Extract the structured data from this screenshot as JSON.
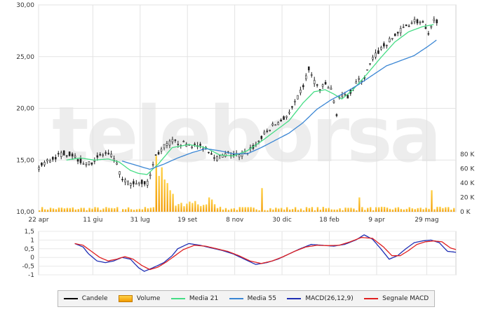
{
  "watermark": "teleborsa",
  "chart_data": [
    {
      "type": "candlestick",
      "panel": "price",
      "ylim": [
        10,
        30
      ],
      "yticks": [
        "10,00",
        "15,00",
        "20,00",
        "25,00",
        "30,00"
      ],
      "volume_axis": {
        "ylim": [
          0,
          90000
        ],
        "ticks": [
          "0 K",
          "20 K",
          "40 K",
          "60 K",
          "80 K"
        ]
      },
      "x_labels": [
        "22 apr",
        "11 giu",
        "31 lug",
        "19 set",
        "8 nov",
        "30 dic",
        "18 feb",
        "9 apr",
        "29 mag"
      ],
      "grid": true,
      "price_path_anchors": [
        [
          0,
          14.3
        ],
        [
          6,
          14.9
        ],
        [
          12,
          15.3
        ],
        [
          18,
          15.7
        ],
        [
          24,
          15.5
        ],
        [
          30,
          14.9
        ],
        [
          36,
          14.6
        ],
        [
          42,
          15.3
        ],
        [
          48,
          15.6
        ],
        [
          54,
          15.2
        ],
        [
          60,
          13.0
        ],
        [
          66,
          12.7
        ],
        [
          72,
          12.9
        ],
        [
          78,
          12.8
        ],
        [
          84,
          15.4
        ],
        [
          90,
          16.3
        ],
        [
          96,
          16.8
        ],
        [
          104,
          16.6
        ],
        [
          112,
          16.4
        ],
        [
          120,
          16.2
        ],
        [
          128,
          15.2
        ],
        [
          136,
          15.6
        ],
        [
          144,
          15.4
        ],
        [
          150,
          15.8
        ],
        [
          156,
          16.5
        ],
        [
          162,
          17.5
        ],
        [
          168,
          18.3
        ],
        [
          174,
          18.8
        ],
        [
          180,
          19.5
        ],
        [
          186,
          21.0
        ],
        [
          190,
          22.2
        ],
        [
          194,
          23.8
        ],
        [
          198,
          22.6
        ],
        [
          202,
          21.8
        ],
        [
          206,
          22.3
        ],
        [
          210,
          21.8
        ],
        [
          214,
          19.5
        ],
        [
          216,
          21.0
        ],
        [
          222,
          21.2
        ],
        [
          228,
          22.5
        ],
        [
          234,
          23.0
        ],
        [
          240,
          24.8
        ],
        [
          246,
          25.8
        ],
        [
          252,
          26.5
        ],
        [
          258,
          27.3
        ],
        [
          264,
          28.0
        ],
        [
          270,
          28.5
        ],
        [
          276,
          28.2
        ],
        [
          280,
          27.0
        ],
        [
          284,
          28.5
        ]
      ],
      "volume_spikes": {
        "84": 78000,
        "86": 50000,
        "88": 62000,
        "90": 45000,
        "92": 40000,
        "94": 30000,
        "96": 25000,
        "122": 20000,
        "160": 33000,
        "185": 15000,
        "230": 20000,
        "282": 30000
      },
      "ma21_anchors": [
        [
          20,
          15.0
        ],
        [
          30,
          15.2
        ],
        [
          40,
          15.0
        ],
        [
          50,
          15.1
        ],
        [
          58,
          14.8
        ],
        [
          66,
          14.0
        ],
        [
          72,
          13.7
        ],
        [
          78,
          13.6
        ],
        [
          86,
          14.6
        ],
        [
          96,
          16.2
        ],
        [
          108,
          16.5
        ],
        [
          120,
          16.2
        ],
        [
          130,
          15.5
        ],
        [
          140,
          15.4
        ],
        [
          150,
          15.9
        ],
        [
          160,
          16.8
        ],
        [
          170,
          17.8
        ],
        [
          180,
          18.8
        ],
        [
          190,
          20.5
        ],
        [
          198,
          21.6
        ],
        [
          206,
          21.8
        ],
        [
          212,
          21.4
        ],
        [
          218,
          20.9
        ],
        [
          226,
          21.8
        ],
        [
          236,
          23.3
        ],
        [
          246,
          24.9
        ],
        [
          256,
          26.4
        ],
        [
          266,
          27.4
        ],
        [
          276,
          27.9
        ],
        [
          284,
          28.1
        ]
      ],
      "ma55_anchors": [
        [
          60,
          14.9
        ],
        [
          70,
          14.5
        ],
        [
          80,
          14.1
        ],
        [
          90,
          14.6
        ],
        [
          100,
          15.2
        ],
        [
          110,
          15.7
        ],
        [
          120,
          16.1
        ],
        [
          130,
          15.9
        ],
        [
          140,
          15.6
        ],
        [
          150,
          15.6
        ],
        [
          160,
          16.2
        ],
        [
          170,
          16.9
        ],
        [
          180,
          17.6
        ],
        [
          190,
          18.6
        ],
        [
          200,
          19.9
        ],
        [
          210,
          20.8
        ],
        [
          220,
          21.5
        ],
        [
          230,
          22.3
        ],
        [
          240,
          23.2
        ],
        [
          250,
          24.1
        ],
        [
          260,
          24.6
        ],
        [
          270,
          25.1
        ],
        [
          280,
          26.0
        ],
        [
          286,
          26.6
        ]
      ]
    },
    {
      "type": "line",
      "panel": "macd",
      "ylim": [
        -1,
        1.5
      ],
      "yticks": [
        "-1",
        "-0,5",
        "0",
        "0,5",
        "1",
        "1,5"
      ],
      "grid": true,
      "series": [
        {
          "name": "MACD(26,12,9)",
          "color": "#1f2fb4",
          "anchors": [
            [
              26,
              0.8
            ],
            [
              32,
              0.6
            ],
            [
              36,
              0.2
            ],
            [
              42,
              -0.2
            ],
            [
              48,
              -0.3
            ],
            [
              54,
              -0.2
            ],
            [
              60,
              0.0
            ],
            [
              66,
              -0.1
            ],
            [
              72,
              -0.6
            ],
            [
              76,
              -0.8
            ],
            [
              82,
              -0.6
            ],
            [
              90,
              -0.3
            ],
            [
              96,
              0.1
            ],
            [
              100,
              0.5
            ],
            [
              108,
              0.8
            ],
            [
              116,
              0.7
            ],
            [
              124,
              0.55
            ],
            [
              132,
              0.4
            ],
            [
              140,
              0.2
            ],
            [
              148,
              -0.1
            ],
            [
              156,
              -0.4
            ],
            [
              164,
              -0.3
            ],
            [
              172,
              -0.1
            ],
            [
              180,
              0.2
            ],
            [
              188,
              0.5
            ],
            [
              196,
              0.75
            ],
            [
              204,
              0.7
            ],
            [
              212,
              0.65
            ],
            [
              220,
              0.75
            ],
            [
              228,
              1.0
            ],
            [
              234,
              1.3
            ],
            [
              240,
              1.05
            ],
            [
              246,
              0.5
            ],
            [
              252,
              -0.1
            ],
            [
              258,
              0.1
            ],
            [
              264,
              0.5
            ],
            [
              270,
              0.85
            ],
            [
              276,
              0.95
            ],
            [
              282,
              1.0
            ],
            [
              288,
              0.85
            ],
            [
              294,
              0.35
            ],
            [
              300,
              0.3
            ]
          ]
        },
        {
          "name": "Segnale MACD",
          "color": "#e02020",
          "anchors": [
            [
              26,
              0.8
            ],
            [
              32,
              0.7
            ],
            [
              38,
              0.35
            ],
            [
              44,
              0.0
            ],
            [
              50,
              -0.2
            ],
            [
              56,
              -0.1
            ],
            [
              62,
              0.05
            ],
            [
              68,
              -0.1
            ],
            [
              74,
              -0.45
            ],
            [
              80,
              -0.7
            ],
            [
              86,
              -0.55
            ],
            [
              92,
              -0.25
            ],
            [
              98,
              0.1
            ],
            [
              104,
              0.45
            ],
            [
              112,
              0.7
            ],
            [
              120,
              0.65
            ],
            [
              128,
              0.5
            ],
            [
              136,
              0.35
            ],
            [
              144,
              0.1
            ],
            [
              152,
              -0.2
            ],
            [
              160,
              -0.35
            ],
            [
              168,
              -0.2
            ],
            [
              176,
              0.05
            ],
            [
              184,
              0.35
            ],
            [
              192,
              0.6
            ],
            [
              200,
              0.7
            ],
            [
              208,
              0.68
            ],
            [
              216,
              0.7
            ],
            [
              224,
              0.9
            ],
            [
              232,
              1.15
            ],
            [
              240,
              1.1
            ],
            [
              248,
              0.6
            ],
            [
              254,
              0.1
            ],
            [
              260,
              0.1
            ],
            [
              266,
              0.4
            ],
            [
              272,
              0.75
            ],
            [
              278,
              0.9
            ],
            [
              284,
              0.95
            ],
            [
              290,
              0.9
            ],
            [
              296,
              0.55
            ],
            [
              300,
              0.45
            ]
          ]
        }
      ]
    }
  ],
  "legend": [
    {
      "label": "Candele",
      "color": "#000000",
      "kind": "line"
    },
    {
      "label": "Volume",
      "color": "#f4a000",
      "kind": "vol"
    },
    {
      "label": "Media 21",
      "color": "#45dd85",
      "kind": "line"
    },
    {
      "label": "Media 55",
      "color": "#3a86d4",
      "kind": "line"
    },
    {
      "label": "MACD(26,12,9)",
      "color": "#1f2fb4",
      "kind": "line"
    },
    {
      "label": "Segnale MACD",
      "color": "#e02020",
      "kind": "line"
    }
  ]
}
